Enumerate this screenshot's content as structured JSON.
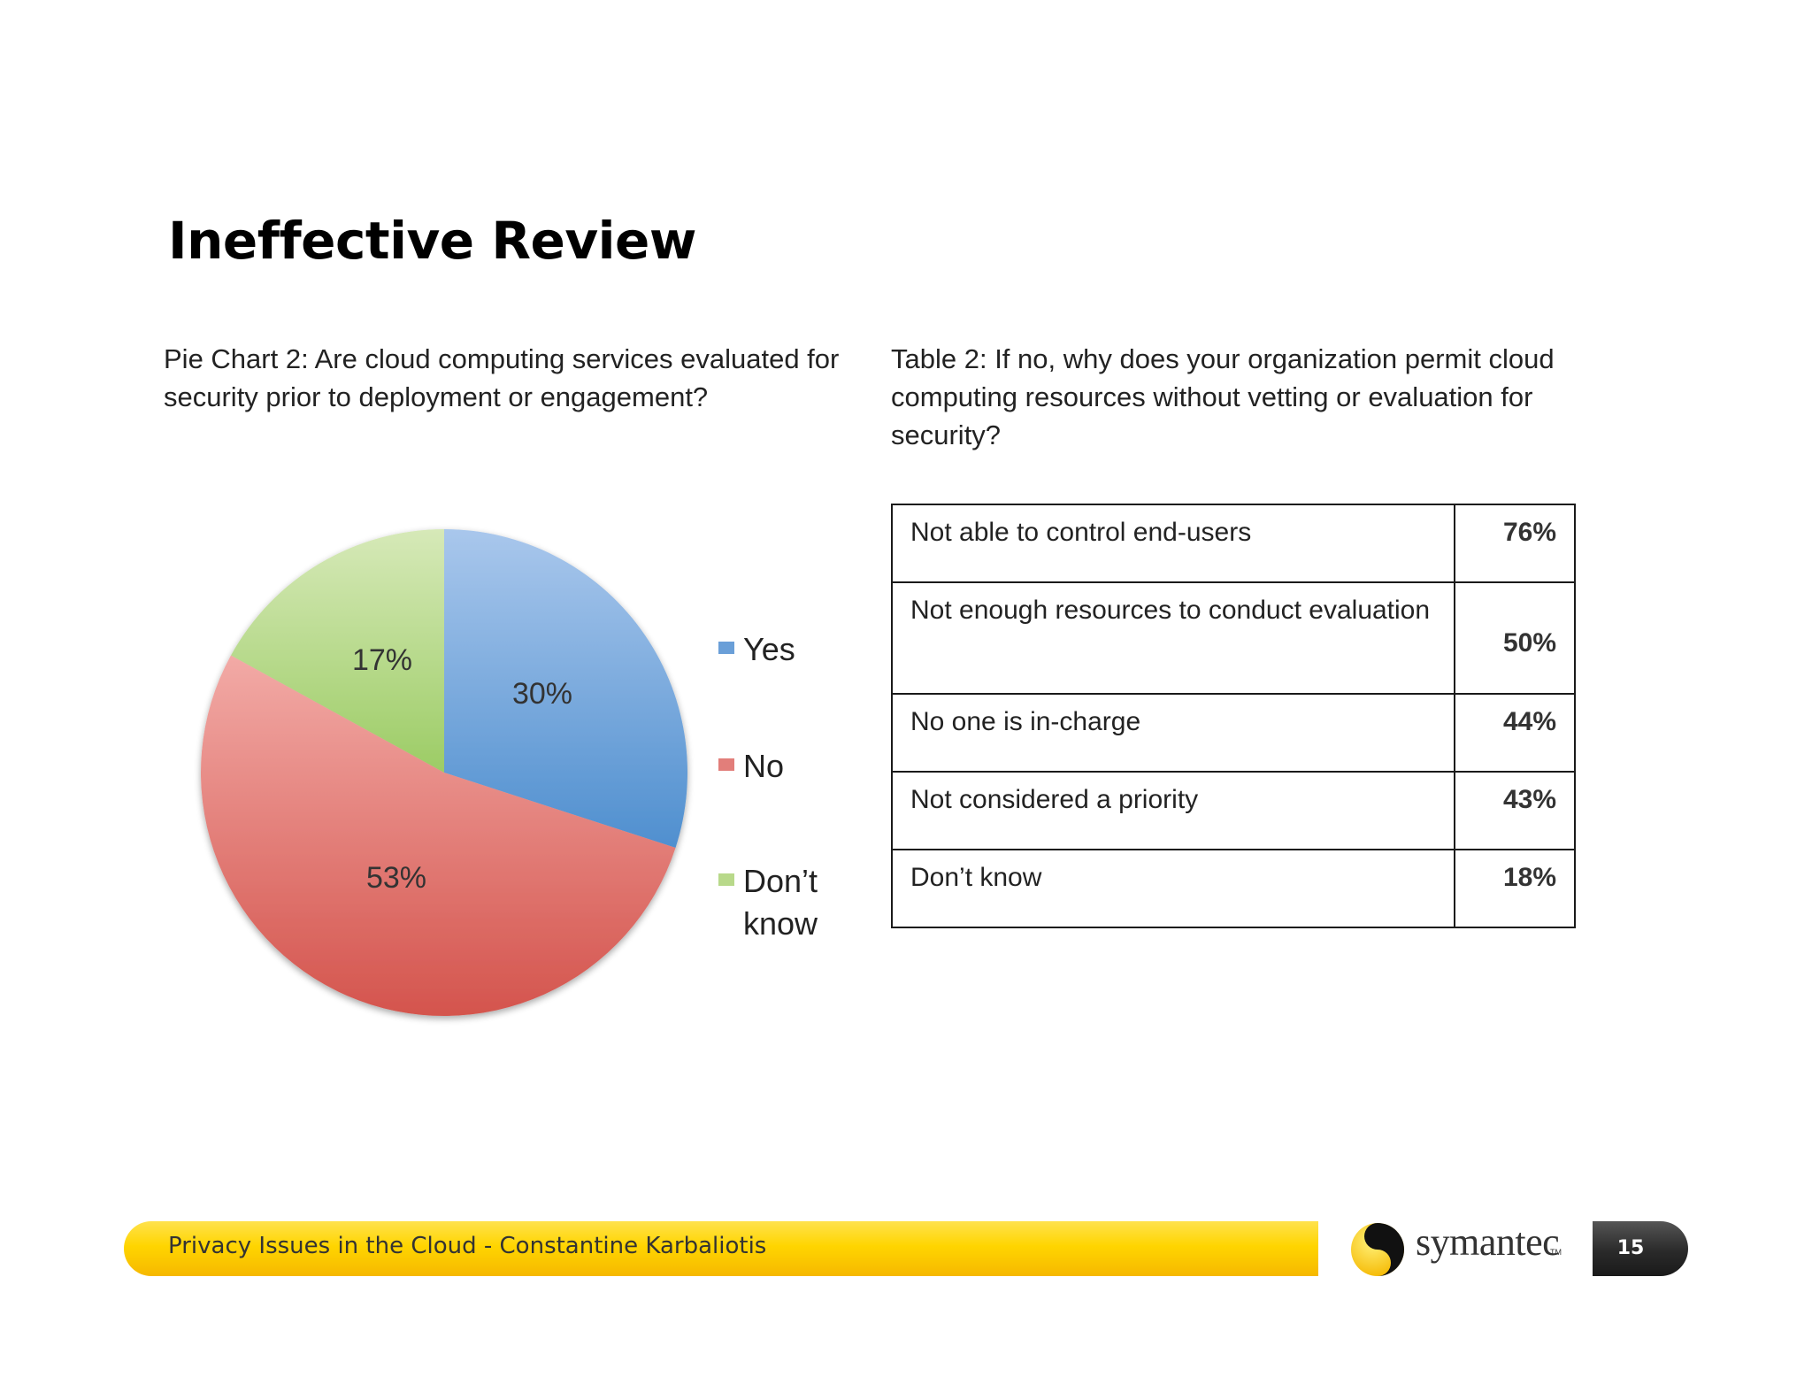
{
  "slide": {
    "title": "Ineffective Review",
    "pie_caption": "Pie Chart 2: Are cloud computing services evaluated for security prior to deployment or engagement?",
    "table_caption": "Table 2: If no, why does your organization permit cloud computing resources without vetting or evaluation for security?"
  },
  "chart_data": {
    "type": "pie",
    "title": "Pie Chart 2: Are cloud computing services evaluated for security prior to deployment or engagement?",
    "slices": [
      {
        "label": "Yes",
        "value": 30,
        "display": "30%",
        "color": "#6a9fd8"
      },
      {
        "label": "No",
        "value": 53,
        "display": "53%",
        "color": "#e27e7a"
      },
      {
        "label": "Don’t know",
        "value": 17,
        "display": "17%",
        "color": "#b8d98a"
      }
    ],
    "legend_position": "right"
  },
  "table": {
    "rows": [
      {
        "reason": "Not able to control end-users",
        "percent": "76%"
      },
      {
        "reason": "Not enough resources to conduct evaluation",
        "percent": "50%"
      },
      {
        "reason": "No one is in-charge",
        "percent": "44%"
      },
      {
        "reason": "Not considered a priority",
        "percent": "43%"
      },
      {
        "reason": "Don’t know",
        "percent": "18%"
      }
    ]
  },
  "footer": {
    "text": "Privacy Issues in the Cloud - Constantine Karbaliotis",
    "brand": "symantec",
    "brand_tm": "TM",
    "page_number": "15"
  },
  "colors": {
    "footer_yellow": "#ffd500",
    "badge_dark": "#2a2a2a"
  }
}
